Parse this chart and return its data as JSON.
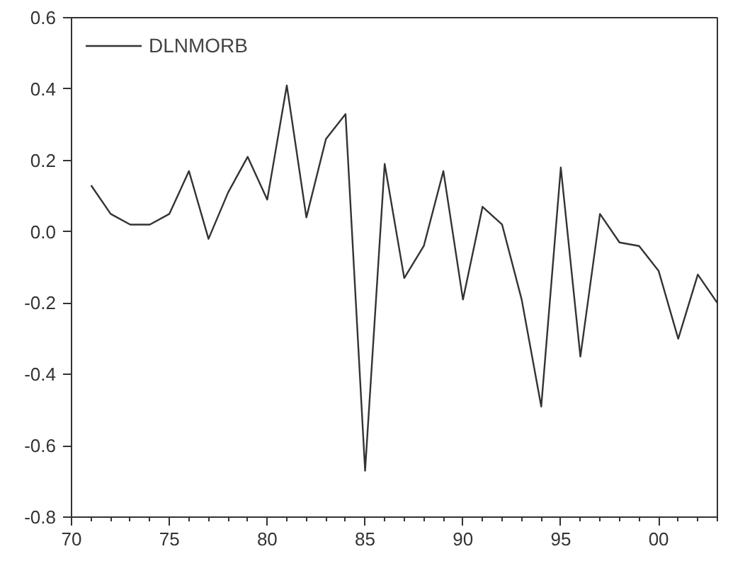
{
  "chart_data": {
    "type": "line",
    "x": [
      1971,
      1972,
      1973,
      1974,
      1975,
      1976,
      1977,
      1978,
      1979,
      1980,
      1981,
      1982,
      1983,
      1984,
      1985,
      1986,
      1987,
      1988,
      1989,
      1990,
      1991,
      1992,
      1993,
      1994,
      1995,
      1996,
      1997,
      1998,
      1999,
      2000,
      2001,
      2002,
      2003
    ],
    "series": [
      {
        "name": "DLNMORB",
        "color": "#333333",
        "values": [
          0.13,
          0.05,
          0.02,
          0.02,
          0.05,
          0.17,
          -0.02,
          0.11,
          0.21,
          0.09,
          0.41,
          0.04,
          0.26,
          0.33,
          -0.67,
          0.19,
          -0.13,
          -0.04,
          0.17,
          -0.19,
          0.07,
          0.02,
          -0.19,
          -0.49,
          0.18,
          -0.35,
          0.05,
          -0.03,
          -0.04,
          -0.11,
          -0.3,
          -0.12,
          -0.2
        ]
      }
    ],
    "xlim": [
      1970,
      2003
    ],
    "xticks": [
      {
        "value": 1970,
        "label": "70"
      },
      {
        "value": 1971,
        "label": null
      },
      {
        "value": 1972,
        "label": null
      },
      {
        "value": 1973,
        "label": null
      },
      {
        "value": 1974,
        "label": null
      },
      {
        "value": 1975,
        "label": "75"
      },
      {
        "value": 1976,
        "label": null
      },
      {
        "value": 1977,
        "label": null
      },
      {
        "value": 1978,
        "label": null
      },
      {
        "value": 1979,
        "label": null
      },
      {
        "value": 1980,
        "label": "80"
      },
      {
        "value": 1981,
        "label": null
      },
      {
        "value": 1982,
        "label": null
      },
      {
        "value": 1983,
        "label": null
      },
      {
        "value": 1984,
        "label": null
      },
      {
        "value": 1985,
        "label": "85"
      },
      {
        "value": 1986,
        "label": null
      },
      {
        "value": 1987,
        "label": null
      },
      {
        "value": 1988,
        "label": null
      },
      {
        "value": 1989,
        "label": null
      },
      {
        "value": 1990,
        "label": "90"
      },
      {
        "value": 1991,
        "label": null
      },
      {
        "value": 1992,
        "label": null
      },
      {
        "value": 1993,
        "label": null
      },
      {
        "value": 1994,
        "label": null
      },
      {
        "value": 1995,
        "label": "95"
      },
      {
        "value": 1996,
        "label": null
      },
      {
        "value": 1997,
        "label": null
      },
      {
        "value": 1998,
        "label": null
      },
      {
        "value": 1999,
        "label": null
      },
      {
        "value": 2000,
        "label": "00"
      },
      {
        "value": 2001,
        "label": null
      },
      {
        "value": 2002,
        "label": null
      },
      {
        "value": 2003,
        "label": null
      }
    ],
    "ylim": [
      -0.8,
      0.6
    ],
    "yticks": [
      {
        "value": -0.8,
        "label": "-0.8"
      },
      {
        "value": -0.6,
        "label": "-0.6"
      },
      {
        "value": -0.4,
        "label": "-0.4"
      },
      {
        "value": -0.2,
        "label": "-0.2"
      },
      {
        "value": 0,
        "label": "0.0"
      },
      {
        "value": 0.2,
        "label": "0.2"
      },
      {
        "value": 0.4,
        "label": "0.4"
      },
      {
        "value": 0.6,
        "label": "0.6"
      }
    ],
    "grid": false,
    "legend": "top left",
    "marker": "none",
    "line_style": "solid"
  }
}
